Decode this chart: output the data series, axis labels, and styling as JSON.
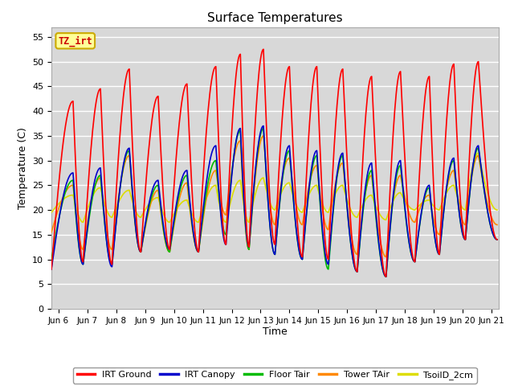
{
  "title": "Surface Temperatures",
  "ylabel": "Temperature (C)",
  "xlabel": "Time",
  "xlim_days": [
    5.75,
    21.25
  ],
  "ylim": [
    0,
    57
  ],
  "yticks": [
    0,
    5,
    10,
    15,
    20,
    25,
    30,
    35,
    40,
    45,
    50,
    55
  ],
  "xtick_labels": [
    "Jun 6",
    "Jun 7",
    "Jun 8",
    "Jun 9",
    "Jun 10",
    "Jun 11",
    "Jun 12",
    "Jun 13",
    "Jun 14",
    "Jun 15",
    "Jun 16",
    "Jun 17",
    "Jun 18",
    "Jun 19",
    "Jun 20",
    "Jun 21"
  ],
  "xtick_positions": [
    6,
    7,
    8,
    9,
    10,
    11,
    12,
    13,
    14,
    15,
    16,
    17,
    18,
    19,
    20,
    21
  ],
  "background_color": "#d8d8d8",
  "plot_bg_color": "#d8d8d8",
  "outer_bg_color": "#ffffff",
  "grid_color": "#ffffff",
  "annotation_text": "TZ_irt",
  "annotation_color": "#cc0000",
  "annotation_bg": "#ffff99",
  "annotation_border": "#ccaa00",
  "legend_items": [
    {
      "label": "IRT Ground",
      "color": "#ff0000"
    },
    {
      "label": "IRT Canopy",
      "color": "#0000cc"
    },
    {
      "label": "Floor Tair",
      "color": "#00bb00"
    },
    {
      "label": "Tower TAir",
      "color": "#ff8800"
    },
    {
      "label": "TsoilD_2cm",
      "color": "#dddd00"
    }
  ],
  "line_width": 1.2,
  "series_order": [
    "tsoil_2cm",
    "tower_tair",
    "floor_tair",
    "irt_canopy",
    "irt_ground"
  ],
  "series": {
    "irt_ground": {
      "color": "#ff0000",
      "cycles": [
        {
          "night_t": 5.75,
          "night_v": 8.0,
          "peak_t": 6.5,
          "peak_v": 42.0
        },
        {
          "night_t": 6.85,
          "night_v": 9.5,
          "peak_t": 7.45,
          "peak_v": 44.5
        },
        {
          "night_t": 7.85,
          "night_v": 9.0,
          "peak_t": 8.45,
          "peak_v": 48.5
        },
        {
          "night_t": 8.85,
          "night_v": 11.5,
          "peak_t": 9.45,
          "peak_v": 43.0
        },
        {
          "night_t": 9.85,
          "night_v": 12.0,
          "peak_t": 10.45,
          "peak_v": 45.5
        },
        {
          "night_t": 10.85,
          "night_v": 11.5,
          "peak_t": 11.45,
          "peak_v": 49.0
        },
        {
          "night_t": 11.8,
          "night_v": 13.0,
          "peak_t": 12.3,
          "peak_v": 51.5
        },
        {
          "night_t": 12.6,
          "night_v": 12.5,
          "peak_t": 13.1,
          "peak_v": 52.5
        },
        {
          "night_t": 13.5,
          "night_v": 13.0,
          "peak_t": 14.0,
          "peak_v": 49.0
        },
        {
          "night_t": 14.45,
          "night_v": 10.5,
          "peak_t": 14.95,
          "peak_v": 49.0
        },
        {
          "night_t": 15.35,
          "night_v": 10.0,
          "peak_t": 15.85,
          "peak_v": 48.5
        },
        {
          "night_t": 16.35,
          "night_v": 7.5,
          "peak_t": 16.85,
          "peak_v": 47.0
        },
        {
          "night_t": 17.35,
          "night_v": 6.5,
          "peak_t": 17.85,
          "peak_v": 48.0
        },
        {
          "night_t": 18.35,
          "night_v": 9.5,
          "peak_t": 18.85,
          "peak_v": 47.0
        },
        {
          "night_t": 19.2,
          "night_v": 11.0,
          "peak_t": 19.7,
          "peak_v": 49.5
        },
        {
          "night_t": 20.1,
          "night_v": 14.0,
          "peak_t": 20.55,
          "peak_v": 50.0
        }
      ],
      "end_night_t": 21.2,
      "end_night_v": 14.0
    },
    "irt_canopy": {
      "color": "#0000cc",
      "cycles": [
        {
          "night_t": 5.75,
          "night_v": 8.0,
          "peak_t": 6.5,
          "peak_v": 27.5
        },
        {
          "night_t": 6.85,
          "night_v": 9.0,
          "peak_t": 7.45,
          "peak_v": 28.5
        },
        {
          "night_t": 7.85,
          "night_v": 8.5,
          "peak_t": 8.45,
          "peak_v": 32.5
        },
        {
          "night_t": 8.85,
          "night_v": 11.5,
          "peak_t": 9.45,
          "peak_v": 26.0
        },
        {
          "night_t": 9.85,
          "night_v": 12.0,
          "peak_t": 10.45,
          "peak_v": 28.0
        },
        {
          "night_t": 10.85,
          "night_v": 11.5,
          "peak_t": 11.45,
          "peak_v": 33.0
        },
        {
          "night_t": 11.8,
          "night_v": 13.0,
          "peak_t": 12.3,
          "peak_v": 36.5
        },
        {
          "night_t": 12.6,
          "night_v": 12.5,
          "peak_t": 13.1,
          "peak_v": 37.0
        },
        {
          "night_t": 13.5,
          "night_v": 11.0,
          "peak_t": 14.0,
          "peak_v": 33.0
        },
        {
          "night_t": 14.45,
          "night_v": 10.0,
          "peak_t": 14.95,
          "peak_v": 32.0
        },
        {
          "night_t": 15.35,
          "night_v": 9.0,
          "peak_t": 15.85,
          "peak_v": 31.5
        },
        {
          "night_t": 16.35,
          "night_v": 7.5,
          "peak_t": 16.85,
          "peak_v": 29.5
        },
        {
          "night_t": 17.35,
          "night_v": 6.5,
          "peak_t": 17.85,
          "peak_v": 30.0
        },
        {
          "night_t": 18.35,
          "night_v": 9.5,
          "peak_t": 18.85,
          "peak_v": 25.0
        },
        {
          "night_t": 19.2,
          "night_v": 11.0,
          "peak_t": 19.7,
          "peak_v": 30.5
        },
        {
          "night_t": 20.1,
          "night_v": 14.0,
          "peak_t": 20.55,
          "peak_v": 33.0
        }
      ],
      "end_night_t": 21.2,
      "end_night_v": 14.0
    },
    "floor_tair": {
      "color": "#00bb00",
      "cycles": [
        {
          "night_t": 5.75,
          "night_v": 10.0,
          "peak_t": 6.5,
          "peak_v": 26.0
        },
        {
          "night_t": 6.85,
          "night_v": 9.0,
          "peak_t": 7.45,
          "peak_v": 27.0
        },
        {
          "night_t": 7.85,
          "night_v": 9.0,
          "peak_t": 8.45,
          "peak_v": 32.0
        },
        {
          "night_t": 8.85,
          "night_v": 11.5,
          "peak_t": 9.45,
          "peak_v": 25.0
        },
        {
          "night_t": 9.85,
          "night_v": 11.5,
          "peak_t": 10.45,
          "peak_v": 27.0
        },
        {
          "night_t": 10.85,
          "night_v": 11.5,
          "peak_t": 11.45,
          "peak_v": 30.0
        },
        {
          "night_t": 11.8,
          "night_v": 15.0,
          "peak_t": 12.3,
          "peak_v": 36.0
        },
        {
          "night_t": 12.6,
          "night_v": 12.0,
          "peak_t": 13.1,
          "peak_v": 36.5
        },
        {
          "night_t": 13.5,
          "night_v": 11.0,
          "peak_t": 14.0,
          "peak_v": 32.0
        },
        {
          "night_t": 14.45,
          "night_v": 10.0,
          "peak_t": 14.95,
          "peak_v": 31.0
        },
        {
          "night_t": 15.35,
          "night_v": 8.0,
          "peak_t": 15.85,
          "peak_v": 31.0
        },
        {
          "night_t": 16.35,
          "night_v": 7.5,
          "peak_t": 16.85,
          "peak_v": 28.0
        },
        {
          "night_t": 17.35,
          "night_v": 6.5,
          "peak_t": 17.85,
          "peak_v": 29.0
        },
        {
          "night_t": 18.35,
          "night_v": 9.5,
          "peak_t": 18.85,
          "peak_v": 24.5
        },
        {
          "night_t": 19.2,
          "night_v": 11.0,
          "peak_t": 19.7,
          "peak_v": 30.0
        },
        {
          "night_t": 20.1,
          "night_v": 14.0,
          "peak_t": 20.55,
          "peak_v": 32.5
        }
      ],
      "end_night_t": 21.2,
      "end_night_v": 14.0
    },
    "tower_tair": {
      "color": "#ff8800",
      "cycles": [
        {
          "night_t": 5.75,
          "night_v": 15.5,
          "peak_t": 6.5,
          "peak_v": 25.0
        },
        {
          "night_t": 6.85,
          "night_v": 12.0,
          "peak_t": 7.45,
          "peak_v": 26.5
        },
        {
          "night_t": 7.85,
          "night_v": 12.0,
          "peak_t": 8.45,
          "peak_v": 31.0
        },
        {
          "night_t": 8.85,
          "night_v": 11.5,
          "peak_t": 9.45,
          "peak_v": 24.0
        },
        {
          "night_t": 9.85,
          "night_v": 11.5,
          "peak_t": 10.45,
          "peak_v": 25.5
        },
        {
          "night_t": 10.85,
          "night_v": 11.5,
          "peak_t": 11.45,
          "peak_v": 28.0
        },
        {
          "night_t": 11.8,
          "night_v": 19.0,
          "peak_t": 12.3,
          "peak_v": 34.0
        },
        {
          "night_t": 12.6,
          "night_v": 12.0,
          "peak_t": 13.1,
          "peak_v": 35.0
        },
        {
          "night_t": 13.5,
          "night_v": 17.0,
          "peak_t": 14.0,
          "peak_v": 30.5
        },
        {
          "night_t": 14.45,
          "night_v": 17.0,
          "peak_t": 14.95,
          "peak_v": 29.0
        },
        {
          "night_t": 15.35,
          "night_v": 16.0,
          "peak_t": 15.85,
          "peak_v": 29.5
        },
        {
          "night_t": 16.35,
          "night_v": 11.0,
          "peak_t": 16.85,
          "peak_v": 27.0
        },
        {
          "night_t": 17.35,
          "night_v": 10.5,
          "peak_t": 17.85,
          "peak_v": 27.0
        },
        {
          "night_t": 18.35,
          "night_v": 17.5,
          "peak_t": 18.85,
          "peak_v": 23.0
        },
        {
          "night_t": 19.2,
          "night_v": 15.0,
          "peak_t": 19.7,
          "peak_v": 28.0
        },
        {
          "night_t": 20.1,
          "night_v": 17.0,
          "peak_t": 20.55,
          "peak_v": 31.0
        }
      ],
      "end_night_t": 21.2,
      "end_night_v": 17.0
    },
    "tsoil_2cm": {
      "color": "#dddd00",
      "cycles": [
        {
          "night_t": 5.75,
          "night_v": 19.5,
          "peak_t": 6.5,
          "peak_v": 23.0
        },
        {
          "night_t": 6.85,
          "night_v": 17.5,
          "peak_t": 7.45,
          "peak_v": 24.5
        },
        {
          "night_t": 7.85,
          "night_v": 18.5,
          "peak_t": 8.45,
          "peak_v": 24.0
        },
        {
          "night_t": 8.85,
          "night_v": 18.5,
          "peak_t": 9.45,
          "peak_v": 22.5
        },
        {
          "night_t": 9.85,
          "night_v": 17.5,
          "peak_t": 10.45,
          "peak_v": 22.0
        },
        {
          "night_t": 10.85,
          "night_v": 17.5,
          "peak_t": 11.45,
          "peak_v": 25.0
        },
        {
          "night_t": 11.8,
          "night_v": 17.5,
          "peak_t": 12.3,
          "peak_v": 26.0
        },
        {
          "night_t": 12.6,
          "night_v": 17.5,
          "peak_t": 13.1,
          "peak_v": 26.5
        },
        {
          "night_t": 13.5,
          "night_v": 20.0,
          "peak_t": 14.0,
          "peak_v": 25.5
        },
        {
          "night_t": 14.45,
          "night_v": 19.5,
          "peak_t": 14.95,
          "peak_v": 25.0
        },
        {
          "night_t": 15.35,
          "night_v": 19.5,
          "peak_t": 15.85,
          "peak_v": 25.0
        },
        {
          "night_t": 16.35,
          "night_v": 18.5,
          "peak_t": 16.85,
          "peak_v": 23.0
        },
        {
          "night_t": 17.35,
          "night_v": 18.0,
          "peak_t": 17.85,
          "peak_v": 23.5
        },
        {
          "night_t": 18.35,
          "night_v": 20.0,
          "peak_t": 18.85,
          "peak_v": 22.0
        },
        {
          "night_t": 19.2,
          "night_v": 20.0,
          "peak_t": 19.7,
          "peak_v": 25.0
        },
        {
          "night_t": 20.1,
          "night_v": 20.0,
          "peak_t": 20.55,
          "peak_v": 31.5
        }
      ],
      "end_night_t": 21.2,
      "end_night_v": 20.0
    }
  }
}
